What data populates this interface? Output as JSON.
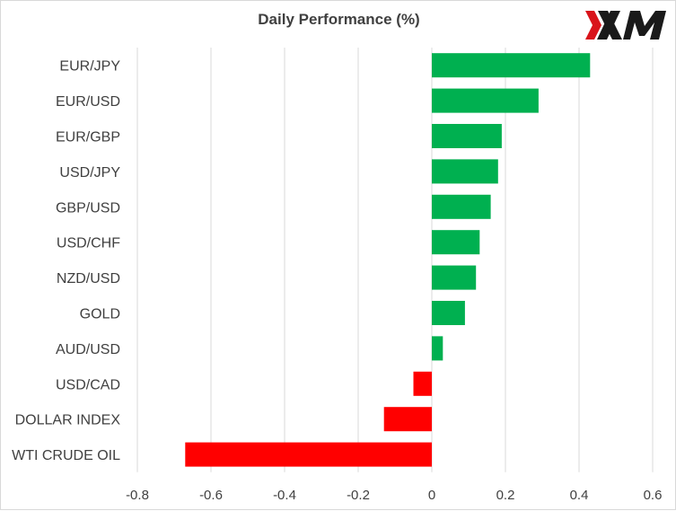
{
  "chart_data": {
    "type": "bar",
    "orientation": "horizontal",
    "title": "Daily Performance (%)",
    "categories": [
      "EUR/JPY",
      "EUR/USD",
      "EUR/GBP",
      "USD/JPY",
      "GBP/USD",
      "USD/CHF",
      "NZD/USD",
      "GOLD",
      "AUD/USD",
      "USD/CAD",
      "DOLLAR INDEX",
      "WTI CRUDE OIL"
    ],
    "values": [
      0.43,
      0.29,
      0.19,
      0.18,
      0.16,
      0.13,
      0.12,
      0.09,
      0.03,
      -0.05,
      -0.13,
      -0.67
    ],
    "xlim": [
      -0.8,
      0.6
    ],
    "xticks": [
      -0.8,
      -0.6,
      -0.4,
      -0.2,
      0,
      0.2,
      0.4,
      0.6
    ],
    "xlabel": "",
    "ylabel": "",
    "grid": "vertical",
    "legend": "none",
    "colors": {
      "positive": "#00b050",
      "negative": "#ff0000",
      "grid": "#d9d9d9",
      "text": "#404040"
    }
  },
  "logo": {
    "text": "XM",
    "accent_color": "#d9141b",
    "text_color": "#1a1a1a"
  }
}
